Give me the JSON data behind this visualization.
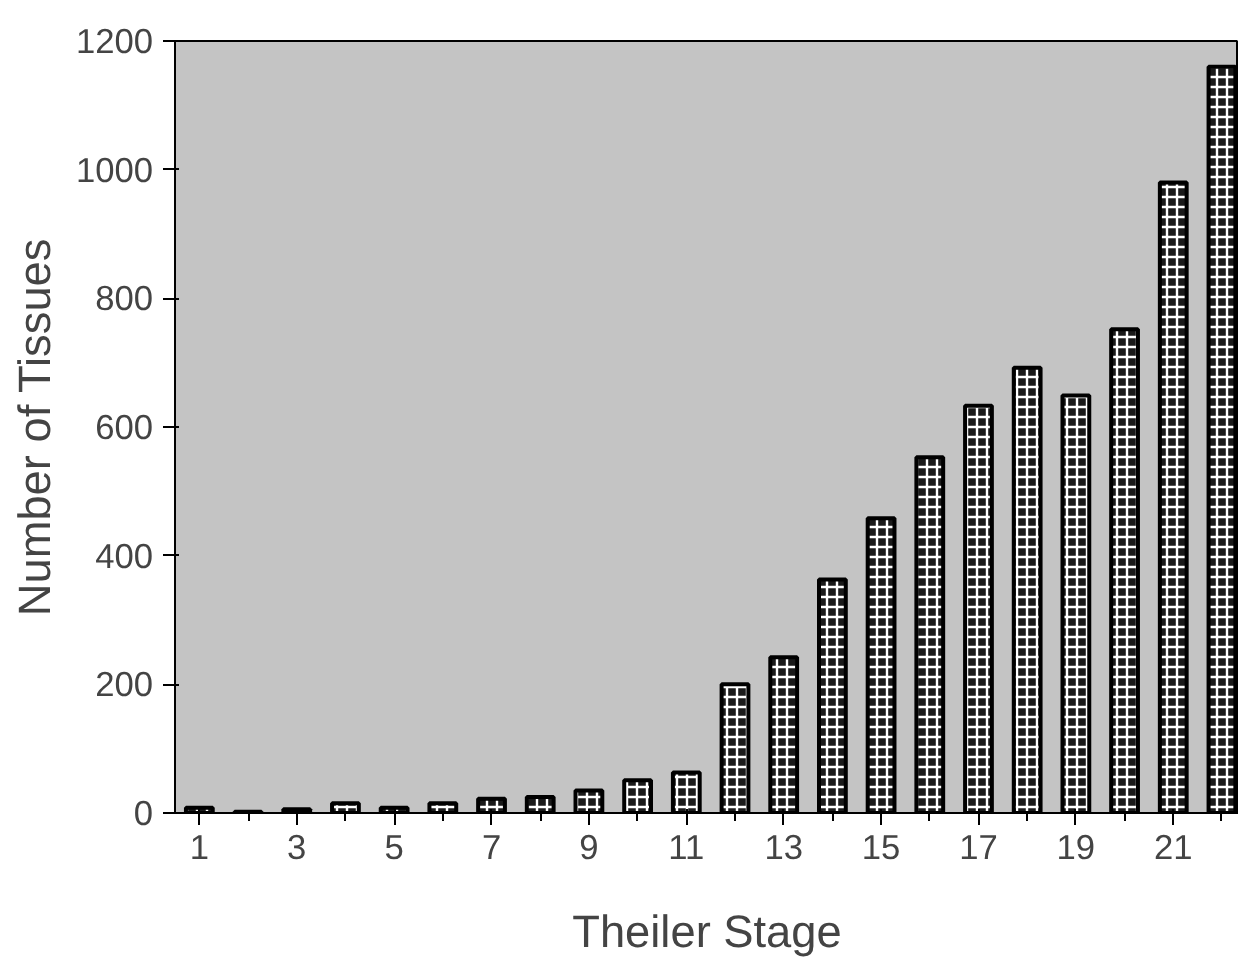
{
  "chart_data": {
    "type": "bar",
    "xlabel": "Theiler Stage",
    "ylabel": "Number of Tissues",
    "x": [
      1,
      2,
      3,
      4,
      5,
      6,
      7,
      8,
      9,
      10,
      11,
      12,
      13,
      14,
      15,
      16,
      17,
      18,
      19,
      20,
      21,
      22
    ],
    "values": [
      8,
      2,
      6,
      15,
      8,
      15,
      22,
      25,
      35,
      51,
      63,
      200,
      242,
      363,
      458,
      553,
      633,
      692,
      649,
      752,
      980,
      1160
    ],
    "color": "#1a1a1a",
    "xlim": [
      0.5,
      22.35
    ],
    "xticks": [
      1,
      3,
      5,
      7,
      9,
      11,
      13,
      15,
      17,
      19,
      21
    ],
    "ylim": [
      0,
      1200
    ],
    "yticks": [
      0,
      200,
      400,
      600,
      800,
      1000,
      1200
    ],
    "grid": false
  }
}
